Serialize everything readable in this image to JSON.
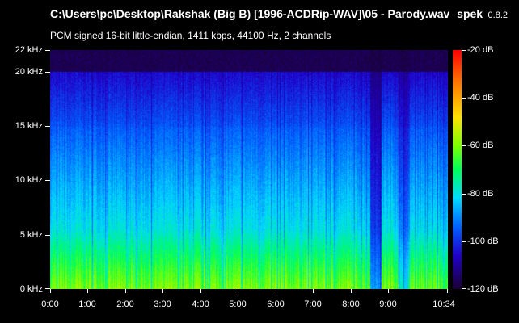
{
  "window": {
    "title": "C:\\Users\\pc\\Desktop\\Rakshak (Big B) [1996-ACDRip-WAV]\\05 - Parody.wav",
    "subtitle": "PCM signed 16-bit little-endian, 1411 kbps, 44100 Hz, 2 channels",
    "app_name": "spek",
    "app_version": "0.8.2"
  },
  "axes": {
    "y_labels": [
      "22 kHz",
      "20 kHz",
      "15 kHz",
      "10 kHz",
      "5 kHz",
      "0 kHz"
    ],
    "x_labels": [
      "0:00",
      "1:00",
      "2:00",
      "3:00",
      "4:00",
      "5:00",
      "6:00",
      "7:00",
      "8:00",
      "9:00",
      "10:34"
    ],
    "db_labels": [
      "-20 dB",
      "-40 dB",
      "-60 dB",
      "-80 dB",
      "-100 dB",
      "-120 dB"
    ]
  },
  "icons": {
    "spectrogram": "spectrogram-heatmap",
    "colorbar": "db-colorbar"
  },
  "colors": {
    "background": "#000000",
    "text": "#ffffff"
  }
}
